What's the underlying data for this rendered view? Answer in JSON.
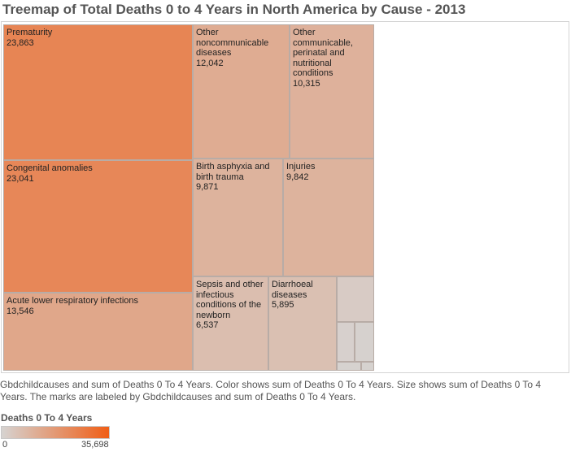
{
  "chart_data": {
    "type": "treemap",
    "title": "Treemap of Total Deaths 0 to 4 Years in North America by Cause - 2013",
    "size_measure": "Deaths 0 To 4 Years",
    "items": [
      {
        "label": "Prematurity",
        "value": 23863,
        "value_text": "23,863"
      },
      {
        "label": "Congenital anomalies",
        "value": 23041,
        "value_text": "23,041"
      },
      {
        "label": "Acute lower respiratory infections",
        "value": 13546,
        "value_text": "13,546"
      },
      {
        "label": "Other noncommunicable diseases",
        "value": 12042,
        "value_text": "12,042"
      },
      {
        "label": "Other communicable, perinatal and nutritional conditions",
        "value": 10315,
        "value_text": "10,315"
      },
      {
        "label": "Birth asphyxia and birth trauma",
        "value": 9871,
        "value_text": "9,871"
      },
      {
        "label": "Injuries",
        "value": 9842,
        "value_text": "9,842"
      },
      {
        "label": "Sepsis and other infectious conditions of the newborn",
        "value": 6537,
        "value_text": "6,537"
      },
      {
        "label": "Diarrhoeal diseases",
        "value": 5895,
        "value_text": "5,895"
      },
      {
        "label": "",
        "value": 2300,
        "value_text": ""
      },
      {
        "label": "",
        "value": 850,
        "value_text": ""
      },
      {
        "label": "",
        "value": 600,
        "value_text": ""
      },
      {
        "label": "",
        "value": 450,
        "value_text": ""
      },
      {
        "label": "",
        "value": 300,
        "value_text": ""
      }
    ],
    "legend": {
      "title": "Deaths 0 To 4 Years",
      "min": 0,
      "max": 35698,
      "min_text": "0",
      "max_text": "35,698",
      "color_low": "#d6d3d1",
      "color_high": "#f05e16"
    }
  },
  "caption": "Gbdchildcauses and sum of Deaths 0 To 4 Years.  Color shows sum of Deaths 0 To 4 Years.  Size shows sum of Deaths 0 To 4 Years.  The marks are labeled by Gbdchildcauses and sum of Deaths 0 To 4 Years."
}
